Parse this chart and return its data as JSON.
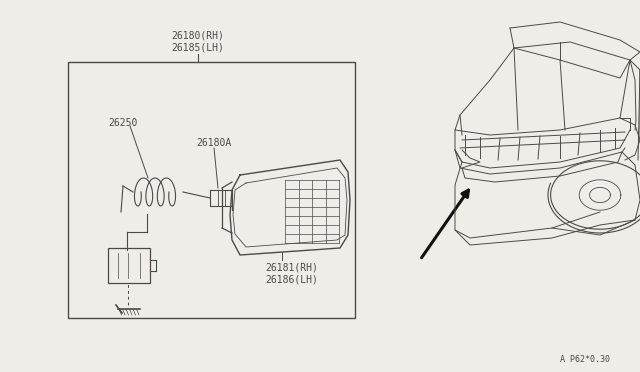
{
  "bg_color": "#f0ede8",
  "line_color": "#4a4a4a",
  "text_color": "#4a4a4a",
  "ref_code": "A P62*0.30",
  "font_size_main": 7.0,
  "font_size_ref": 6.0,
  "label_top1": "26180(RH)",
  "label_top2": "26185(LH)",
  "label_26250": "26250",
  "label_26180A": "26180A",
  "label_26181": "26181(RH)",
  "label_26186": "26186(LH)"
}
